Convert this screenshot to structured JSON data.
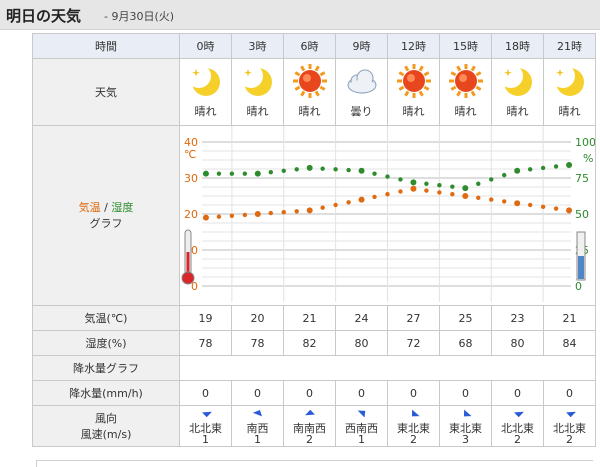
{
  "header": {
    "title": "明日の天気",
    "date": "- 9月30日(火)"
  },
  "labels": {
    "time": "時間",
    "weather": "天気",
    "graph_line1_temp": "気温",
    "graph_sep": " / ",
    "graph_line1_humid": "湿度",
    "graph_line2": "グラフ",
    "temp_row": "気温(℃)",
    "humid_row": "湿度(%)",
    "precip_graph": "降水量グラフ",
    "precip_row": "降水量(mm/h)",
    "wind_dir": "風向",
    "wind_speed": "風速(m/s)"
  },
  "columns": [
    {
      "hour": "0時",
      "weather": "晴れ",
      "icon": "moon-icon",
      "temp": 19,
      "humidity": 78,
      "precip": 0,
      "wind_dir": "北北東",
      "wind_speed": 1
    },
    {
      "hour": "3時",
      "weather": "晴れ",
      "icon": "moon-icon",
      "temp": 20,
      "humidity": 78,
      "precip": 0,
      "wind_dir": "南西",
      "wind_speed": 1
    },
    {
      "hour": "6時",
      "weather": "晴れ",
      "icon": "sun-icon",
      "temp": 21,
      "humidity": 82,
      "precip": 0,
      "wind_dir": "南南西",
      "wind_speed": 2
    },
    {
      "hour": "9時",
      "weather": "曇り",
      "icon": "cloud-icon",
      "temp": 24,
      "humidity": 80,
      "precip": 0,
      "wind_dir": "西南西",
      "wind_speed": 1
    },
    {
      "hour": "12時",
      "weather": "晴れ",
      "icon": "sun-icon",
      "temp": 27,
      "humidity": 72,
      "precip": 0,
      "wind_dir": "東北東",
      "wind_speed": 2
    },
    {
      "hour": "15時",
      "weather": "晴れ",
      "icon": "sun-icon",
      "temp": 25,
      "humidity": 68,
      "precip": 0,
      "wind_dir": "東北東",
      "wind_speed": 3
    },
    {
      "hour": "18時",
      "weather": "晴れ",
      "icon": "moon-icon",
      "temp": 23,
      "humidity": 80,
      "precip": 0,
      "wind_dir": "北北東",
      "wind_speed": 2
    },
    {
      "hour": "21時",
      "weather": "晴れ",
      "icon": "moon-icon",
      "temp": 21,
      "humidity": 84,
      "precip": 0,
      "wind_dir": "北北東",
      "wind_speed": 2
    }
  ],
  "chart_data": {
    "type": "line",
    "x": [
      "0時",
      "3時",
      "6時",
      "9時",
      "12時",
      "15時",
      "18時",
      "21時"
    ],
    "series": [
      {
        "name": "気温",
        "unit": "℃",
        "color": "#e06a0f",
        "values": [
          19,
          20,
          21,
          24,
          27,
          25,
          23,
          21
        ]
      },
      {
        "name": "湿度",
        "unit": "%",
        "color": "#2e8b2e",
        "values": [
          78,
          78,
          82,
          80,
          72,
          68,
          80,
          84
        ]
      }
    ],
    "left_axis": {
      "unit": "℃",
      "ticks": [
        "0",
        "10",
        "20",
        "30",
        "40"
      ],
      "range": [
        0,
        40
      ],
      "color": "#e06a0f"
    },
    "right_axis": {
      "unit": "%",
      "ticks": [
        "0",
        "25",
        "50",
        "75",
        "100"
      ],
      "range": [
        0,
        100
      ],
      "color": "#2e8b2e"
    },
    "grid": true
  },
  "colors": {
    "temp": "#e06a0f",
    "humidity": "#2e8b2e",
    "header_bg": "#e6e6e6",
    "label_bg": "#f0f0f0",
    "hour_bg": "#e9eef6",
    "wind_arrow": "#2a5bd7"
  }
}
